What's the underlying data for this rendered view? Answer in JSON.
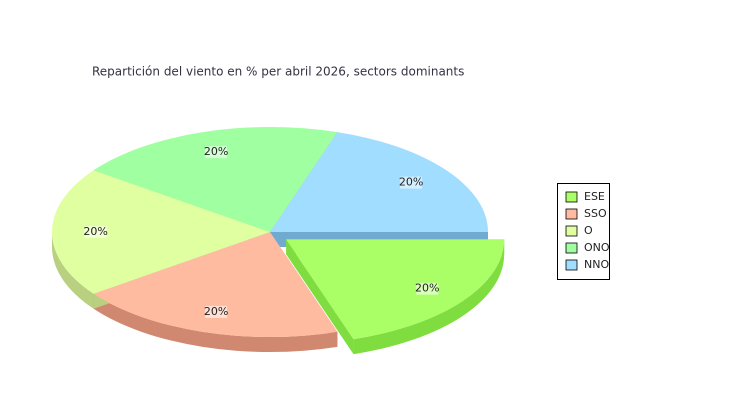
{
  "chart_data": {
    "type": "pie",
    "title": "Repartición del viento en % per abril 2026, sectors dominants",
    "categories": [
      "ESE",
      "SSO",
      "O",
      "ONO",
      "NNO"
    ],
    "values": [
      20,
      20,
      20,
      20,
      20
    ],
    "value_labels": [
      "20%",
      "20%",
      "20%",
      "20%",
      "20%"
    ],
    "colors": [
      "#aaff66",
      "#ffbba0",
      "#e0ffa0",
      "#a0ffa0",
      "#a0ddff"
    ],
    "side_colors": [
      "#80dd40",
      "#d08870",
      "#b8d080",
      "#80d080",
      "#70aad0"
    ],
    "explode": [
      true,
      false,
      false,
      false,
      false
    ],
    "legend": "right"
  }
}
